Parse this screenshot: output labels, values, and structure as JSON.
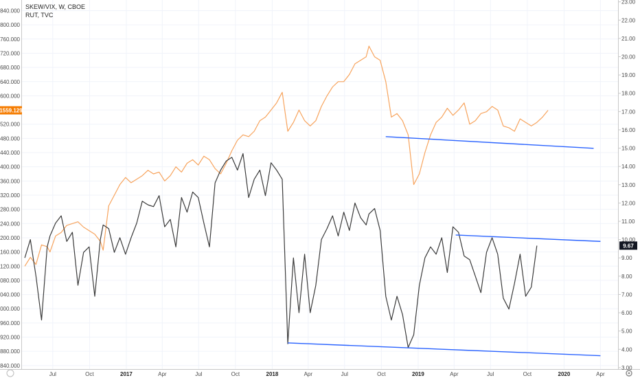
{
  "chart_data": {
    "type": "line",
    "title": "SKEW/VIX, W, CBOE",
    "subtitle": "RUT, TVC",
    "x_tick_labels": [
      "Jul",
      "Oct",
      "2017",
      "Apr",
      "Jul",
      "Oct",
      "2018",
      "Apr",
      "Jul",
      "Oct",
      "2019",
      "Apr",
      "Jul",
      "Oct",
      "2020",
      "Apr"
    ],
    "x_tick_dates": [
      "2016-07-01",
      "2016-10-01",
      "2017-01-01",
      "2017-04-01",
      "2017-07-01",
      "2017-10-01",
      "2018-01-01",
      "2018-04-01",
      "2018-07-01",
      "2018-10-01",
      "2019-01-01",
      "2019-04-01",
      "2019-07-01",
      "2019-10-01",
      "2020-01-01",
      "2020-04-01"
    ],
    "x_range": [
      "2016-04-15",
      "2020-05-15"
    ],
    "left_axis": {
      "ticks": [
        "1840.000",
        "1800.000",
        "1760.000",
        "1720.000",
        "1680.000",
        "1640.000",
        "1600.000",
        "1560.000",
        "1520.000",
        "1480.000",
        "1440.000",
        "1400.000",
        "1360.000",
        "1320.000",
        "1280.000",
        "1240.000",
        "1200.000",
        "1160.000",
        "1120.000",
        "1080.000",
        "1040.000",
        "1000.000",
        "960.000",
        "920.000",
        "880.000",
        "840.000"
      ],
      "range": [
        830,
        1870
      ]
    },
    "right_axis": {
      "ticks": [
        "23.00",
        "22.00",
        "21.00",
        "20.00",
        "19.00",
        "18.00",
        "17.00",
        "16.00",
        "15.00",
        "14.00",
        "13.00",
        "12.00",
        "11.00",
        "10.00",
        "9.00",
        "8.00",
        "7.00",
        "6.00",
        "5.00",
        "4.00",
        "3.00"
      ],
      "range": [
        2.92,
        23.1
      ]
    },
    "last_value_badges": {
      "rut": "1559.129",
      "skew_vix": "9.67"
    },
    "colors": {
      "rut": "#f7a35c",
      "skew_vix": "#3a3a3a",
      "trendline": "#2962ff",
      "badge_rut": "#f57c00",
      "badge_skew": "#131722",
      "grid": "#f0f3fa"
    },
    "series": [
      {
        "axis": "left",
        "x": [
          "2016-04-22",
          "2016-05-06",
          "2016-05-20",
          "2016-06-03",
          "2016-06-17",
          "2016-06-24",
          "2016-07-08",
          "2016-07-22",
          "2016-08-05",
          "2016-08-19",
          "2016-09-02",
          "2016-09-16",
          "2016-09-30",
          "2016-10-14",
          "2016-10-28",
          "2016-11-04",
          "2016-11-18",
          "2016-12-02",
          "2016-12-16",
          "2016-12-30",
          "2017-01-13",
          "2017-01-27",
          "2017-02-10",
          "2017-02-24",
          "2017-03-10",
          "2017-03-24",
          "2017-04-07",
          "2017-04-21",
          "2017-05-05",
          "2017-05-19",
          "2017-06-02",
          "2017-06-16",
          "2017-06-30",
          "2017-07-14",
          "2017-07-28",
          "2017-08-11",
          "2017-08-25",
          "2017-09-08",
          "2017-09-22",
          "2017-10-06",
          "2017-10-20",
          "2017-11-03",
          "2017-11-17",
          "2017-12-01",
          "2017-12-15",
          "2017-12-29",
          "2018-01-12",
          "2018-01-26",
          "2018-02-09",
          "2018-02-23",
          "2018-03-09",
          "2018-03-23",
          "2018-04-06",
          "2018-04-20",
          "2018-05-04",
          "2018-05-18",
          "2018-06-01",
          "2018-06-15",
          "2018-06-29",
          "2018-07-13",
          "2018-07-27",
          "2018-08-10",
          "2018-08-24",
          "2018-08-31",
          "2018-09-14",
          "2018-09-28",
          "2018-10-12",
          "2018-10-26",
          "2018-11-09",
          "2018-11-23",
          "2018-12-07",
          "2018-12-21",
          "2019-01-04",
          "2019-01-18",
          "2019-02-01",
          "2019-02-15",
          "2019-03-01",
          "2019-03-15",
          "2019-03-29",
          "2019-04-12",
          "2019-04-26",
          "2019-05-10",
          "2019-05-24",
          "2019-06-07",
          "2019-06-21",
          "2019-07-05",
          "2019-07-19",
          "2019-08-02",
          "2019-08-16",
          "2019-08-30",
          "2019-09-13",
          "2019-09-27",
          "2019-10-11",
          "2019-10-25",
          "2019-11-08",
          "2019-11-22"
        ],
        "values": [
          1120,
          1145,
          1125,
          1180,
          1175,
          1160,
          1205,
          1215,
          1235,
          1240,
          1245,
          1230,
          1220,
          1210,
          1190,
          1165,
          1290,
          1320,
          1350,
          1370,
          1355,
          1365,
          1375,
          1390,
          1380,
          1385,
          1360,
          1375,
          1400,
          1385,
          1410,
          1420,
          1405,
          1430,
          1420,
          1395,
          1380,
          1410,
          1445,
          1475,
          1490,
          1485,
          1500,
          1530,
          1540,
          1560,
          1580,
          1610,
          1500,
          1525,
          1560,
          1530,
          1515,
          1530,
          1570,
          1600,
          1625,
          1640,
          1640,
          1660,
          1690,
          1700,
          1710,
          1740,
          1710,
          1700,
          1640,
          1540,
          1550,
          1530,
          1490,
          1350,
          1380,
          1440,
          1490,
          1525,
          1540,
          1565,
          1545,
          1560,
          1580,
          1520,
          1530,
          1550,
          1555,
          1570,
          1560,
          1515,
          1510,
          1500,
          1535,
          1525,
          1515,
          1525,
          1540,
          1559.129
        ]
      },
      {
        "axis": "right",
        "x": [
          "2016-04-22",
          "2016-05-06",
          "2016-05-20",
          "2016-06-03",
          "2016-06-17",
          "2016-06-24",
          "2016-07-08",
          "2016-07-22",
          "2016-08-05",
          "2016-08-19",
          "2016-09-02",
          "2016-09-16",
          "2016-09-30",
          "2016-10-14",
          "2016-10-28",
          "2016-11-04",
          "2016-11-18",
          "2016-12-02",
          "2016-12-16",
          "2016-12-30",
          "2017-01-13",
          "2017-01-27",
          "2017-02-10",
          "2017-02-24",
          "2017-03-10",
          "2017-03-24",
          "2017-04-07",
          "2017-04-21",
          "2017-05-05",
          "2017-05-19",
          "2017-06-02",
          "2017-06-16",
          "2017-06-30",
          "2017-07-14",
          "2017-07-28",
          "2017-08-11",
          "2017-08-25",
          "2017-09-08",
          "2017-09-22",
          "2017-10-06",
          "2017-10-20",
          "2017-11-03",
          "2017-11-17",
          "2017-12-01",
          "2017-12-15",
          "2017-12-29",
          "2018-01-12",
          "2018-01-26",
          "2018-02-09",
          "2018-02-23",
          "2018-03-09",
          "2018-03-23",
          "2018-04-06",
          "2018-04-20",
          "2018-05-04",
          "2018-05-18",
          "2018-06-01",
          "2018-06-15",
          "2018-06-29",
          "2018-07-13",
          "2018-07-27",
          "2018-08-10",
          "2018-08-24",
          "2018-08-31",
          "2018-09-14",
          "2018-09-28",
          "2018-10-12",
          "2018-10-26",
          "2018-11-09",
          "2018-11-23",
          "2018-12-07",
          "2018-12-21",
          "2019-01-04",
          "2019-01-18",
          "2019-02-01",
          "2019-02-15",
          "2019-03-01",
          "2019-03-15",
          "2019-03-29",
          "2019-04-12",
          "2019-04-26",
          "2019-05-10",
          "2019-05-24",
          "2019-06-07",
          "2019-06-21",
          "2019-07-05",
          "2019-07-19",
          "2019-08-02",
          "2019-08-16",
          "2019-08-30",
          "2019-09-13",
          "2019-09-27",
          "2019-10-11",
          "2019-10-25"
        ],
        "values": [
          9.0,
          10.0,
          8.0,
          5.6,
          9.6,
          10.2,
          10.9,
          11.3,
          9.9,
          10.4,
          7.5,
          9.3,
          9.6,
          6.9,
          10.0,
          10.8,
          10.6,
          9.3,
          10.1,
          9.2,
          10.1,
          10.9,
          12.1,
          11.9,
          11.8,
          12.4,
          10.7,
          11.1,
          9.6,
          12.3,
          11.5,
          12.6,
          12.3,
          10.9,
          9.6,
          13.1,
          13.8,
          14.3,
          14.5,
          13.8,
          14.7,
          12.3,
          13.3,
          13.8,
          12.4,
          14.2,
          13.8,
          13.3,
          4.3,
          9.0,
          6.0,
          9.2,
          6.0,
          7.5,
          10.0,
          10.6,
          11.3,
          10.2,
          11.5,
          10.5,
          12.0,
          11.2,
          10.8,
          11.4,
          11.7,
          10.5,
          6.9,
          5.6,
          6.9,
          5.9,
          4.1,
          4.8,
          7.5,
          9.0,
          9.6,
          9.2,
          10.1,
          8.2,
          10.7,
          10.4,
          9.1,
          8.9,
          8.0,
          7.1,
          9.3,
          10.1,
          9.2,
          6.8,
          6.2,
          7.6,
          9.2,
          6.9,
          7.4,
          9.67
        ]
      }
    ],
    "trendlines": [
      {
        "axis": "left",
        "x": [
          "2018-10-12",
          "2020-03-15"
        ],
        "values": [
          1485,
          1452
        ]
      },
      {
        "axis": "right",
        "x": [
          "2019-04-05",
          "2020-04-01"
        ],
        "values": [
          10.25,
          9.9
        ]
      },
      {
        "axis": "right",
        "x": [
          "2018-02-09",
          "2020-04-01"
        ],
        "values": [
          4.35,
          3.65
        ]
      }
    ]
  }
}
